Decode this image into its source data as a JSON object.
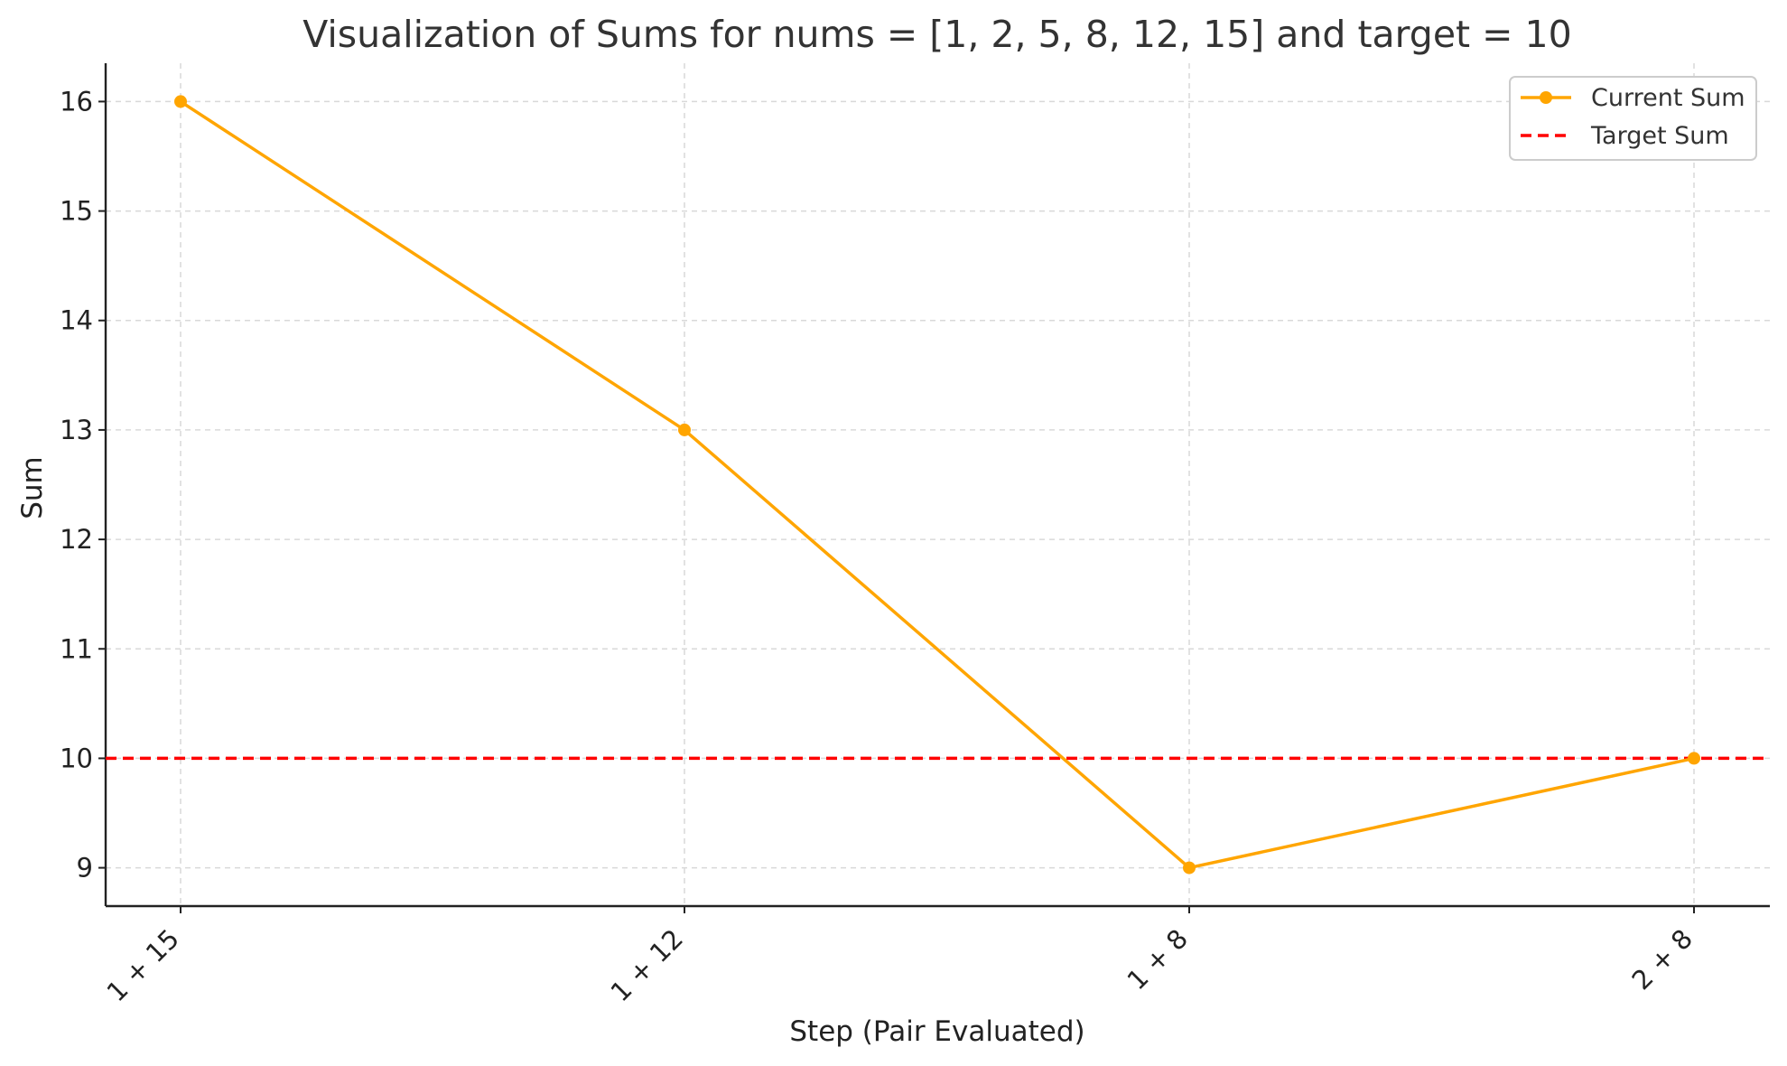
{
  "chart_data": {
    "type": "line",
    "title": "Visualization of Sums for nums = [1, 2, 5, 8, 12, 15] and target = 10",
    "xlabel": "Step (Pair Evaluated)",
    "ylabel": "Sum",
    "categories": [
      "1 + 15",
      "1 + 12",
      "1 + 8",
      "2 + 8"
    ],
    "yticks": [
      9,
      10,
      11,
      12,
      13,
      14,
      15,
      16
    ],
    "ylim": [
      8.65,
      16.35
    ],
    "grid": true,
    "legend_position": "top-right",
    "series": [
      {
        "name": "Current Sum",
        "style": "solid-with-markers",
        "color": "#FFA500",
        "values": [
          16,
          13,
          9,
          10
        ]
      }
    ],
    "reference_lines": [
      {
        "name": "Target Sum",
        "style": "dashed",
        "color": "#FF0000",
        "y": 10
      }
    ]
  }
}
